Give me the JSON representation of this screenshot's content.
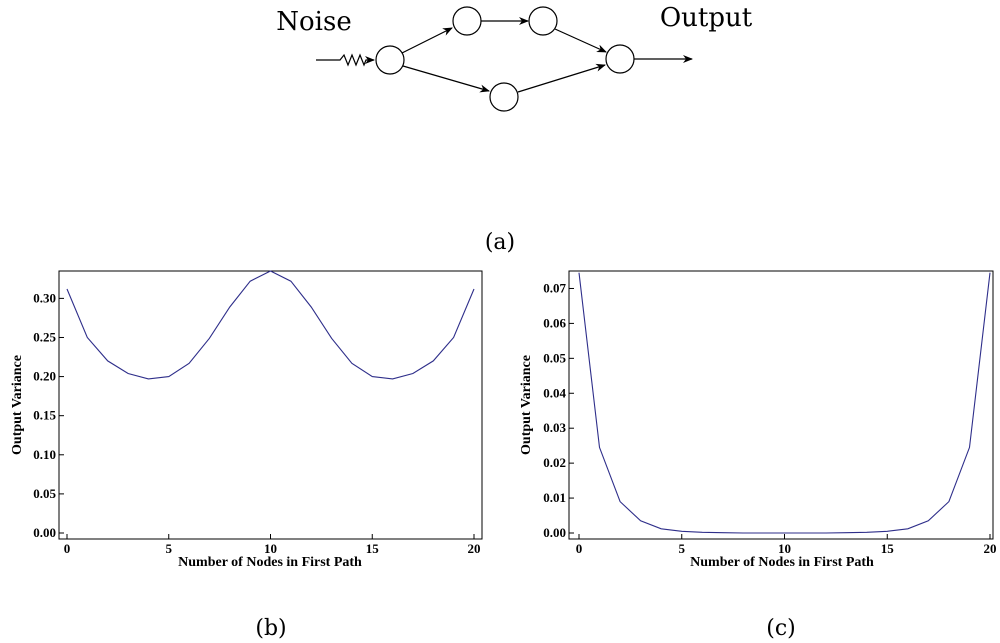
{
  "diagram": {
    "input_label": "Noise",
    "output_label": "Output",
    "caption": "(a)"
  },
  "chart_data": [
    {
      "type": "line",
      "caption": "(b)",
      "xlabel": "Number of Nodes in First Path",
      "ylabel": "Output Variance",
      "xlim": [
        0,
        20
      ],
      "ylim": [
        0,
        0.335
      ],
      "x_ticks": [
        "0",
        "5",
        "10",
        "15",
        "20"
      ],
      "y_ticks": [
        "0.00",
        "0.05",
        "0.10",
        "0.15",
        "0.20",
        "0.25",
        "0.30"
      ],
      "series": [
        {
          "color": "#2e2e8a",
          "x": [
            0,
            1,
            2,
            3,
            4,
            5,
            6,
            7,
            8,
            9,
            10,
            11,
            12,
            13,
            14,
            15,
            16,
            17,
            18,
            19,
            20
          ],
          "y": [
            0.312,
            0.25,
            0.22,
            0.204,
            0.197,
            0.2,
            0.217,
            0.249,
            0.289,
            0.322,
            0.335,
            0.322,
            0.289,
            0.249,
            0.217,
            0.2,
            0.197,
            0.204,
            0.22,
            0.25,
            0.312
          ]
        }
      ]
    },
    {
      "type": "line",
      "caption": "(c)",
      "xlabel": "Number of Nodes in First Path",
      "ylabel": "Output Variance",
      "xlim": [
        0,
        20
      ],
      "ylim": [
        0,
        0.075
      ],
      "x_ticks": [
        "0",
        "5",
        "10",
        "15",
        "20"
      ],
      "y_ticks": [
        "0.00",
        "0.01",
        "0.02",
        "0.03",
        "0.04",
        "0.05",
        "0.06",
        "0.07"
      ],
      "series": [
        {
          "color": "#2e2e8a",
          "x": [
            0,
            1,
            2,
            3,
            4,
            5,
            6,
            7,
            8,
            9,
            10,
            11,
            12,
            13,
            14,
            15,
            16,
            17,
            18,
            19,
            20
          ],
          "y": [
            0.0745,
            0.0245,
            0.009,
            0.0035,
            0.0012,
            0.0005,
            0.0002,
            0.0001,
            0.0,
            0.0,
            0.0,
            0.0,
            0.0,
            0.0001,
            0.0002,
            0.0005,
            0.0012,
            0.0035,
            0.009,
            0.0245,
            0.0745
          ]
        }
      ]
    }
  ]
}
